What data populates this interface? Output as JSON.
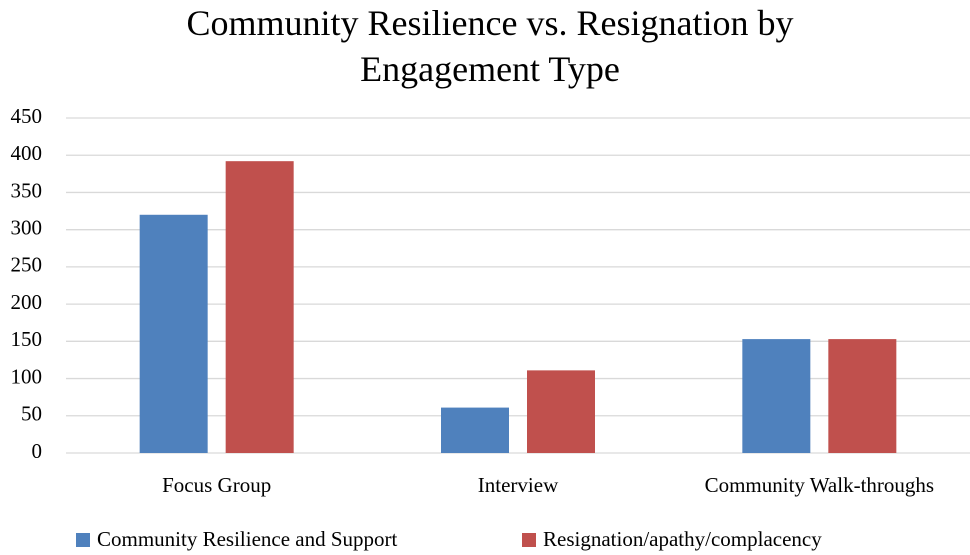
{
  "chart_data": {
    "type": "bar",
    "title": "Community Resilience vs. Resignation by Engagement Type",
    "categories": [
      "Focus Group",
      "Interview",
      "Community Walk-throughs"
    ],
    "series": [
      {
        "name": "Community Resilience and Support",
        "color": "#4f81bd",
        "values": [
          320,
          61,
          153
        ]
      },
      {
        "name": "Resignation/apathy/complacency",
        "color": "#c0504d",
        "values": [
          392,
          111,
          153
        ]
      }
    ],
    "ylim": [
      0,
      450
    ],
    "yticks": [
      0,
      50,
      100,
      150,
      200,
      250,
      300,
      350,
      400,
      450
    ],
    "grid": true,
    "legend": "bottom"
  }
}
